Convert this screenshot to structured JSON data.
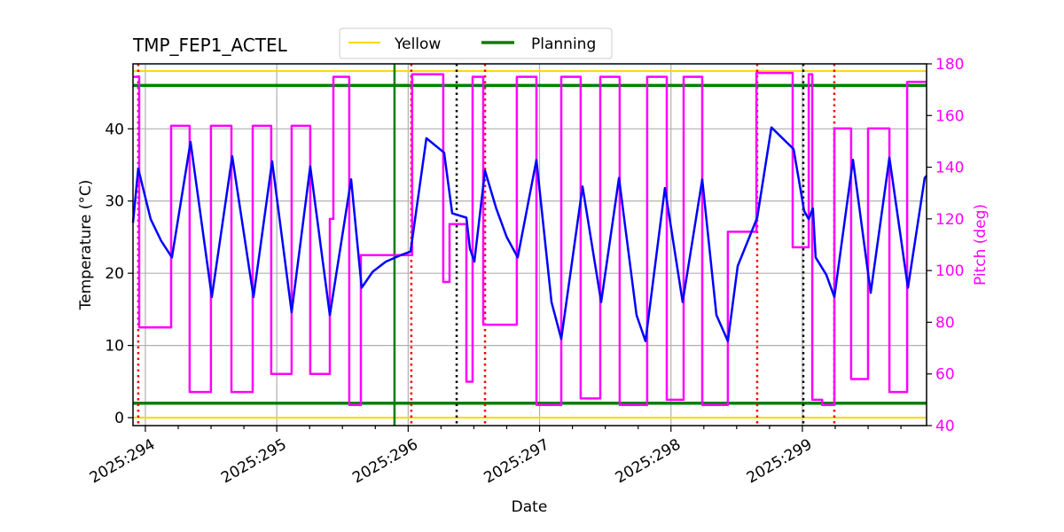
{
  "chart_data": {
    "type": "line",
    "title": "TMP_FEP1_ACTEL",
    "xlabel": "Date",
    "ylabel": "Temperature ($^\\circ$C)",
    "ylabel_display": "Temperature (°C)",
    "y2label": "Pitch (deg)",
    "xlim": [
      293.906,
      299.945
    ],
    "ylim": [
      -1.1,
      49
    ],
    "y2lim": [
      40,
      180
    ],
    "grid": true,
    "legend_placement": "top-center",
    "x_ticks": [
      294,
      295,
      296,
      297,
      298,
      299
    ],
    "x_tick_labels": [
      "2025:294",
      "2025:295",
      "2025:296",
      "2025:297",
      "2025:298",
      "2025:299"
    ],
    "y_ticks": [
      0,
      10,
      20,
      30,
      40
    ],
    "y2_ticks": [
      40,
      60,
      80,
      100,
      120,
      140,
      160,
      180
    ],
    "legend": [
      {
        "name": "Yellow",
        "color": "#ffd700"
      },
      {
        "name": "Planning",
        "color": "#008000"
      }
    ],
    "limit_lines": [
      {
        "name": "Yellow",
        "values": [
          48,
          0
        ],
        "color": "#ffd700"
      },
      {
        "name": "Planning",
        "values": [
          46,
          2
        ],
        "color": "#008000"
      }
    ],
    "vertical_lines": {
      "red_dotted": [
        293.946,
        296.024,
        296.585,
        298.656,
        299.243
      ],
      "black_dotted": [
        296.369,
        299.007
      ],
      "green_solid": [
        295.896
      ]
    },
    "temperature": {
      "color": "#0000ff",
      "x": [
        293.906,
        293.946,
        294.04,
        294.12,
        294.202,
        294.344,
        294.506,
        294.661,
        294.823,
        294.965,
        295.113,
        295.255,
        295.404,
        295.566,
        295.646,
        295.73,
        295.83,
        295.93,
        296.018,
        296.139,
        296.274,
        296.335,
        296.443,
        296.47,
        296.504,
        296.585,
        296.67,
        296.75,
        296.834,
        296.976,
        297.091,
        297.165,
        297.327,
        297.469,
        297.604,
        297.738,
        297.806,
        297.954,
        298.089,
        298.238,
        298.346,
        298.433,
        298.508,
        298.656,
        298.764,
        298.933,
        299.014,
        299.048,
        299.08,
        299.101,
        299.182,
        299.243,
        299.385,
        299.52,
        299.662,
        299.803,
        299.931,
        299.945
      ],
      "y": [
        27,
        34.5,
        27.5,
        24.5,
        22.2,
        38.2,
        16.7,
        36.2,
        16.7,
        35.5,
        14.6,
        34.8,
        14.2,
        33,
        18,
        20.2,
        21.6,
        22.4,
        23,
        38.7,
        36.7,
        28.3,
        27.7,
        23.4,
        21.6,
        34.2,
        29,
        25,
        22.2,
        35.7,
        16,
        10.9,
        32,
        16,
        33.2,
        14.2,
        10.6,
        31.8,
        16,
        33,
        14.2,
        10.6,
        21,
        27.7,
        40.2,
        37.2,
        28.6,
        27.5,
        29,
        22.2,
        19.8,
        16.7,
        35.7,
        17.3,
        36,
        18,
        33.2,
        33.5
      ]
    },
    "pitch": {
      "color": "#ff00ff",
      "step": "post",
      "x": [
        293.906,
        293.953,
        294.196,
        294.337,
        294.499,
        294.655,
        294.817,
        294.958,
        295.113,
        295.255,
        295.404,
        295.431,
        295.552,
        295.64,
        296.03,
        296.267,
        296.315,
        296.443,
        296.49,
        296.571,
        296.827,
        296.976,
        297.165,
        297.313,
        297.462,
        297.61,
        297.819,
        297.968,
        298.096,
        298.238,
        298.433,
        298.65,
        298.926,
        299.048,
        299.075,
        299.15,
        299.243,
        299.371,
        299.5,
        299.662,
        299.797,
        299.945
      ],
      "y": [
        175,
        78,
        156,
        53,
        156,
        53,
        156,
        60,
        156,
        60,
        120,
        175,
        48,
        106,
        176,
        95.6,
        118,
        57,
        175,
        79,
        175,
        48,
        175,
        50.5,
        175,
        48,
        175,
        50,
        175,
        48,
        115,
        176.5,
        109,
        176,
        50,
        48,
        155,
        58,
        155,
        53,
        173,
        173
      ]
    }
  }
}
